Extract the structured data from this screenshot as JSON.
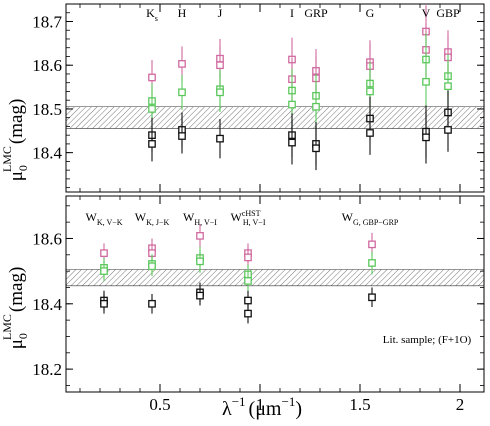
{
  "chart_data": [
    {
      "type": "scatter",
      "panel": "top",
      "ylabel": "μ0^LMC (mag)",
      "ylabel_main": "μ",
      "ylabel_sub": "0",
      "ylabel_sup": "LMC",
      "ylabel_unit": "(mag)",
      "xlim": [
        0.03,
        2.12
      ],
      "ylim": [
        18.31,
        18.74
      ],
      "yticks": [
        "18.4",
        "18.5",
        "18.6",
        "18.7"
      ],
      "band": [
        18.455,
        18.505
      ],
      "band_labels": [
        {
          "x": 0.46,
          "text": "K",
          "sub": "s"
        },
        {
          "x": 0.61,
          "text": "H",
          "sub": ""
        },
        {
          "x": 0.8,
          "text": "J",
          "sub": ""
        },
        {
          "x": 1.16,
          "text": "I",
          "sub": ""
        },
        {
          "x": 1.28,
          "text": "GRP",
          "sub": ""
        },
        {
          "x": 1.55,
          "text": "G",
          "sub": ""
        },
        {
          "x": 1.83,
          "text": "V",
          "sub": ""
        },
        {
          "x": 1.94,
          "text": "GBP",
          "sub": ""
        }
      ],
      "series": [
        {
          "color": "#d06aa0",
          "points": [
            {
              "x": 0.46,
              "y": 18.572,
              "err": 0.04,
              "marker": "square"
            },
            {
              "x": 0.61,
              "y": 18.603,
              "err": 0.04,
              "marker": "square"
            },
            {
              "x": 0.8,
              "y": 18.615,
              "err": 0.045,
              "marker": "square"
            },
            {
              "x": 0.8,
              "y": 18.6,
              "err": 0.045,
              "marker": "square"
            },
            {
              "x": 1.16,
              "y": 18.613,
              "err": 0.05,
              "marker": "square"
            },
            {
              "x": 1.16,
              "y": 18.568,
              "err": 0.05,
              "marker": "square"
            },
            {
              "x": 1.28,
              "y": 18.587,
              "err": 0.05,
              "marker": "square"
            },
            {
              "x": 1.28,
              "y": 18.57,
              "err": 0.05,
              "marker": "square"
            },
            {
              "x": 1.55,
              "y": 18.607,
              "err": 0.05,
              "marker": "square"
            },
            {
              "x": 1.55,
              "y": 18.598,
              "err": 0.05,
              "marker": "square"
            },
            {
              "x": 1.83,
              "y": 18.677,
              "err": 0.06,
              "marker": "square"
            },
            {
              "x": 1.83,
              "y": 18.635,
              "err": 0.06,
              "marker": "square"
            },
            {
              "x": 1.94,
              "y": 18.63,
              "err": 0.05,
              "marker": "square"
            },
            {
              "x": 1.94,
              "y": 18.618,
              "err": 0.05,
              "marker": "square"
            }
          ]
        },
        {
          "color": "#5cc85c",
          "points": [
            {
              "x": 0.46,
              "y": 18.518,
              "err": 0.04,
              "marker": "square"
            },
            {
              "x": 0.46,
              "y": 18.5,
              "err": 0.04,
              "marker": "square"
            },
            {
              "x": 0.61,
              "y": 18.538,
              "err": 0.04,
              "marker": "square"
            },
            {
              "x": 0.8,
              "y": 18.545,
              "err": 0.045,
              "marker": "square"
            },
            {
              "x": 0.8,
              "y": 18.538,
              "err": 0.045,
              "marker": "square"
            },
            {
              "x": 1.16,
              "y": 18.542,
              "err": 0.05,
              "marker": "square"
            },
            {
              "x": 1.16,
              "y": 18.51,
              "err": 0.05,
              "marker": "square"
            },
            {
              "x": 1.28,
              "y": 18.53,
              "err": 0.05,
              "marker": "square"
            },
            {
              "x": 1.28,
              "y": 18.505,
              "err": 0.05,
              "marker": "square"
            },
            {
              "x": 1.55,
              "y": 18.558,
              "err": 0.05,
              "marker": "square"
            },
            {
              "x": 1.55,
              "y": 18.54,
              "err": 0.05,
              "marker": "square"
            },
            {
              "x": 1.83,
              "y": 18.613,
              "err": 0.06,
              "marker": "square"
            },
            {
              "x": 1.83,
              "y": 18.562,
              "err": 0.06,
              "marker": "square"
            },
            {
              "x": 1.94,
              "y": 18.575,
              "err": 0.05,
              "marker": "square"
            },
            {
              "x": 1.94,
              "y": 18.552,
              "err": 0.05,
              "marker": "square"
            }
          ]
        },
        {
          "color": "#111111",
          "points": [
            {
              "x": 0.46,
              "y": 18.44,
              "err": 0.04,
              "marker": "square"
            },
            {
              "x": 0.46,
              "y": 18.42,
              "err": 0.04,
              "marker": "square"
            },
            {
              "x": 0.61,
              "y": 18.452,
              "err": 0.04,
              "marker": "square"
            },
            {
              "x": 0.61,
              "y": 18.438,
              "err": 0.04,
              "marker": "square"
            },
            {
              "x": 0.8,
              "y": 18.432,
              "err": 0.045,
              "marker": "square"
            },
            {
              "x": 1.16,
              "y": 18.44,
              "err": 0.05,
              "marker": "square"
            },
            {
              "x": 1.16,
              "y": 18.423,
              "err": 0.05,
              "marker": "square"
            },
            {
              "x": 1.28,
              "y": 18.42,
              "err": 0.05,
              "marker": "square"
            },
            {
              "x": 1.28,
              "y": 18.41,
              "err": 0.05,
              "marker": "square"
            },
            {
              "x": 1.55,
              "y": 18.478,
              "err": 0.05,
              "marker": "square"
            },
            {
              "x": 1.55,
              "y": 18.445,
              "err": 0.05,
              "marker": "square"
            },
            {
              "x": 1.83,
              "y": 18.448,
              "err": 0.06,
              "marker": "square"
            },
            {
              "x": 1.83,
              "y": 18.435,
              "err": 0.06,
              "marker": "square"
            },
            {
              "x": 1.94,
              "y": 18.492,
              "err": 0.05,
              "marker": "square"
            },
            {
              "x": 1.94,
              "y": 18.452,
              "err": 0.05,
              "marker": "square"
            }
          ]
        }
      ]
    },
    {
      "type": "scatter",
      "panel": "bottom",
      "xlabel": "λ−1 (μm−1)",
      "xlabel_main": "λ",
      "xlabel_sup": "−1",
      "xlabel_unit": "(μm",
      "xlabel_unit_sup": "−1",
      "xlabel_close": ")",
      "ylabel": "μ0^LMC (mag)",
      "ylabel_main": "μ",
      "ylabel_sub": "0",
      "ylabel_sup": "LMC",
      "ylabel_unit": "(mag)",
      "xlim": [
        0.03,
        2.12
      ],
      "ylim": [
        18.13,
        18.73
      ],
      "xticks": [
        {
          "value": 0.5,
          "label": "0.5"
        },
        {
          "value": 1.0,
          "label": "1"
        },
        {
          "value": 1.5,
          "label": "1.5"
        },
        {
          "value": 2.0,
          "label": "2"
        }
      ],
      "yticks": [
        "18.2",
        "18.4",
        "18.6"
      ],
      "band": [
        18.455,
        18.505
      ],
      "annotation": "Lit. sample; (F+1O)",
      "band_labels": [
        {
          "x": 0.22,
          "text": "W",
          "sub": "K, V−K",
          "sup": ""
        },
        {
          "x": 0.46,
          "text": "W",
          "sub": "K, J−K",
          "sup": ""
        },
        {
          "x": 0.7,
          "text": "W",
          "sub": "H, V−I",
          "sup": ""
        },
        {
          "x": 0.94,
          "text": "W",
          "sub": "H, V−I",
          "sup": "cHST"
        },
        {
          "x": 1.55,
          "text": "W",
          "sub": "G, GBP−GRP",
          "sup": ""
        }
      ],
      "series": [
        {
          "color": "#d06aa0",
          "points": [
            {
              "x": 0.22,
              "y": 18.555,
              "err": 0.03,
              "marker": "square"
            },
            {
              "x": 0.46,
              "y": 18.57,
              "err": 0.03,
              "marker": "square"
            },
            {
              "x": 0.46,
              "y": 18.555,
              "err": 0.03,
              "marker": "square"
            },
            {
              "x": 0.7,
              "y": 18.608,
              "err": 0.035,
              "marker": "square"
            },
            {
              "x": 0.94,
              "y": 18.555,
              "err": 0.03,
              "marker": "square"
            },
            {
              "x": 0.94,
              "y": 18.542,
              "err": 0.03,
              "marker": "square"
            },
            {
              "x": 1.56,
              "y": 18.582,
              "err": 0.035,
              "marker": "square"
            }
          ]
        },
        {
          "color": "#5cc85c",
          "points": [
            {
              "x": 0.22,
              "y": 18.51,
              "err": 0.03,
              "marker": "square"
            },
            {
              "x": 0.22,
              "y": 18.5,
              "err": 0.03,
              "marker": "square"
            },
            {
              "x": 0.46,
              "y": 18.522,
              "err": 0.03,
              "marker": "square"
            },
            {
              "x": 0.46,
              "y": 18.515,
              "err": 0.03,
              "marker": "square"
            },
            {
              "x": 0.7,
              "y": 18.54,
              "err": 0.035,
              "marker": "square"
            },
            {
              "x": 0.7,
              "y": 18.53,
              "err": 0.035,
              "marker": "square"
            },
            {
              "x": 0.94,
              "y": 18.49,
              "err": 0.03,
              "marker": "square"
            },
            {
              "x": 0.94,
              "y": 18.47,
              "err": 0.03,
              "marker": "square"
            },
            {
              "x": 1.56,
              "y": 18.525,
              "err": 0.035,
              "marker": "square"
            }
          ]
        },
        {
          "color": "#111111",
          "points": [
            {
              "x": 0.22,
              "y": 18.41,
              "err": 0.03,
              "marker": "square"
            },
            {
              "x": 0.22,
              "y": 18.4,
              "err": 0.03,
              "marker": "square"
            },
            {
              "x": 0.46,
              "y": 18.4,
              "err": 0.03,
              "marker": "square"
            },
            {
              "x": 0.7,
              "y": 18.435,
              "err": 0.03,
              "marker": "square"
            },
            {
              "x": 0.7,
              "y": 18.425,
              "err": 0.03,
              "marker": "square"
            },
            {
              "x": 0.94,
              "y": 18.41,
              "err": 0.03,
              "marker": "square"
            },
            {
              "x": 0.94,
              "y": 18.37,
              "err": 0.03,
              "marker": "square"
            },
            {
              "x": 1.56,
              "y": 18.42,
              "err": 0.03,
              "marker": "square"
            }
          ]
        }
      ]
    }
  ]
}
